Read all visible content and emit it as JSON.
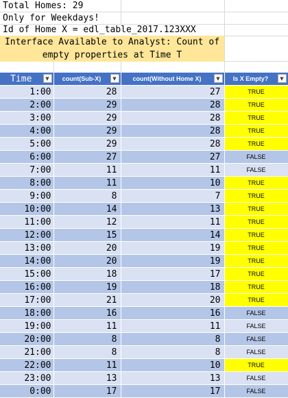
{
  "info": {
    "total_homes": "Total Homes: 29",
    "weekdays": "Only for Weekdays!",
    "home_id": "Id of Home X = edl_table_2017.123XXX"
  },
  "note": {
    "line1": "Interface Available to Analyst: Count of",
    "line2": "empty properties at Time T"
  },
  "table": {
    "headers": [
      "Time",
      "count(Sub-X)",
      "count(Without Home X)",
      "Is X Empty?"
    ],
    "dropdown_glyph": "▼",
    "rows": [
      {
        "time": "1:00",
        "sub_x": 28,
        "without_x": 27,
        "empty": "TRUE"
      },
      {
        "time": "2:00",
        "sub_x": 29,
        "without_x": 28,
        "empty": "TRUE"
      },
      {
        "time": "3:00",
        "sub_x": 29,
        "without_x": 28,
        "empty": "TRUE"
      },
      {
        "time": "4:00",
        "sub_x": 29,
        "without_x": 28,
        "empty": "TRUE"
      },
      {
        "time": "5:00",
        "sub_x": 29,
        "without_x": 28,
        "empty": "TRUE"
      },
      {
        "time": "6:00",
        "sub_x": 27,
        "without_x": 27,
        "empty": "FALSE"
      },
      {
        "time": "7:00",
        "sub_x": 11,
        "without_x": 11,
        "empty": "FALSE"
      },
      {
        "time": "8:00",
        "sub_x": 11,
        "without_x": 10,
        "empty": "TRUE"
      },
      {
        "time": "9:00",
        "sub_x": 8,
        "without_x": 7,
        "empty": "TRUE"
      },
      {
        "time": "10:00",
        "sub_x": 14,
        "without_x": 13,
        "empty": "TRUE"
      },
      {
        "time": "11:00",
        "sub_x": 12,
        "without_x": 11,
        "empty": "TRUE"
      },
      {
        "time": "12:00",
        "sub_x": 15,
        "without_x": 14,
        "empty": "TRUE"
      },
      {
        "time": "13:00",
        "sub_x": 20,
        "without_x": 19,
        "empty": "TRUE"
      },
      {
        "time": "14:00",
        "sub_x": 20,
        "without_x": 19,
        "empty": "TRUE"
      },
      {
        "time": "15:00",
        "sub_x": 18,
        "without_x": 17,
        "empty": "TRUE"
      },
      {
        "time": "16:00",
        "sub_x": 19,
        "without_x": 18,
        "empty": "TRUE"
      },
      {
        "time": "17:00",
        "sub_x": 21,
        "without_x": 20,
        "empty": "TRUE"
      },
      {
        "time": "18:00",
        "sub_x": 16,
        "without_x": 16,
        "empty": "FALSE"
      },
      {
        "time": "19:00",
        "sub_x": 11,
        "without_x": 11,
        "empty": "FALSE"
      },
      {
        "time": "20:00",
        "sub_x": 8,
        "without_x": 8,
        "empty": "FALSE"
      },
      {
        "time": "21:00",
        "sub_x": 8,
        "without_x": 8,
        "empty": "FALSE"
      },
      {
        "time": "22:00",
        "sub_x": 11,
        "without_x": 10,
        "empty": "TRUE"
      },
      {
        "time": "23:00",
        "sub_x": 13,
        "without_x": 13,
        "empty": "FALSE"
      },
      {
        "time": "0:00",
        "sub_x": 17,
        "without_x": 17,
        "empty": "FALSE"
      }
    ]
  },
  "colors": {
    "header": "#4472c4",
    "band_light": "#d9e1f2",
    "band_dark": "#b4c6e7",
    "highlight_true": "#ffff00",
    "note_fill": "#ffe699"
  },
  "icons": {
    "filter_dropdown": "filter-dropdown-icon"
  }
}
